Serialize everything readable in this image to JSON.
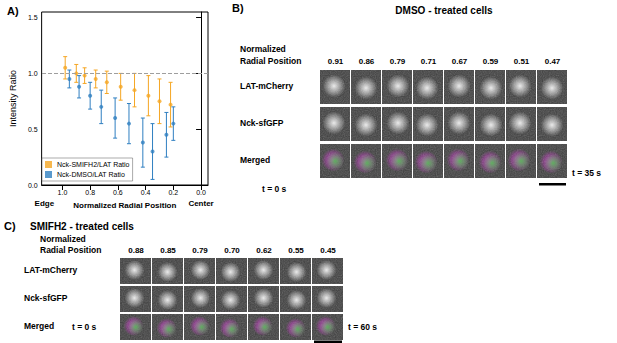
{
  "chart_data": {
    "type": "scatter",
    "title": "A)",
    "x_label": "Normalized Radial Position",
    "y_label": "Intensity Ratio",
    "xlim": [
      1.15,
      -0.05
    ],
    "xticks": [
      {
        "value": 1,
        "label": "1.0"
      },
      0.8,
      0.6,
      0.4,
      0.2,
      {
        "value": 0,
        "label": "0.0"
      }
    ],
    "ylim": [
      0,
      1.55
    ],
    "yticks": [
      {
        "value": 0,
        "label": "0.0"
      },
      0.5,
      {
        "value": 1,
        "label": "1.0"
      },
      1.5
    ],
    "grid": false,
    "legend": "lower left",
    "annotations": [
      {
        "y": 1,
        "line_style": "dashed",
        "color": "#9e9e9e"
      },
      {
        "text": "Edge",
        "x": 1.13
      },
      {
        "text": "Center",
        "x": 0
      }
    ],
    "series": [
      {
        "name": "Nck-SMIFH2/LAT Ratio",
        "color": "#f5a623",
        "marker": "circle",
        "x": [
          0.98,
          0.9,
          0.84,
          0.76,
          0.68,
          0.58,
          0.48,
          0.38,
          0.3,
          0.22
        ],
        "values": [
          1.05,
          1.0,
          0.98,
          0.95,
          0.92,
          0.88,
          0.85,
          0.8,
          0.75,
          0.72
        ],
        "errors": [
          0.1,
          0.08,
          0.07,
          0.08,
          0.1,
          0.12,
          0.15,
          0.18,
          0.2,
          0.2
        ]
      },
      {
        "name": "Nck-DMSO/LAT Ratio",
        "color": "#2f7fc1",
        "marker": "circle",
        "x": [
          0.95,
          0.88,
          0.8,
          0.72,
          0.62,
          0.52,
          0.42,
          0.35,
          0.25,
          0.2
        ],
        "values": [
          0.95,
          0.88,
          0.8,
          0.7,
          0.6,
          0.55,
          0.38,
          0.3,
          0.45,
          0.55
        ],
        "errors": [
          0.08,
          0.1,
          0.12,
          0.15,
          0.18,
          0.18,
          0.22,
          0.25,
          0.2,
          0.15
        ]
      }
    ]
  },
  "panel_b": {
    "label": "B)",
    "title": "DMSO - treated cells",
    "position_label": [
      "Normalized",
      "Radial Position"
    ],
    "positions": [
      "0.91",
      "0.86",
      "0.79",
      "0.71",
      "0.67",
      "0.59",
      "0.51",
      "0.47"
    ],
    "rows": [
      "LAT-mCherry",
      "Nck-sfGFP",
      "Merged"
    ],
    "time_start": "t = 0 s",
    "time_end": "t = 35 s"
  },
  "panel_c": {
    "label": "C)",
    "title": "SMIFH2 - treated cells",
    "position_label": [
      "Normalized",
      "Radial Position"
    ],
    "positions": [
      "0.88",
      "0.85",
      "0.79",
      "0.70",
      "0.62",
      "0.55",
      "0.45"
    ],
    "rows": [
      "LAT-mCherry",
      "Nck-sfGFP",
      "Merged"
    ],
    "time_start": "t = 0 s",
    "time_end": "t = 60 s"
  }
}
